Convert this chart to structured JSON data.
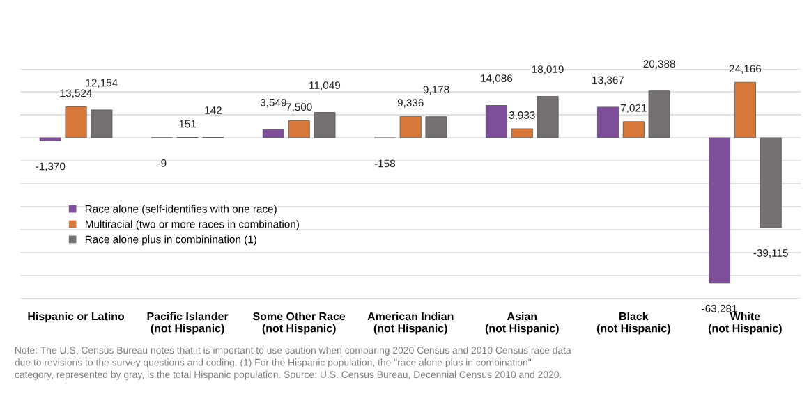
{
  "chart_data": {
    "type": "bar",
    "categories": [
      "Hispanic or Latino",
      "Pacific Islander\n(not Hispanic)",
      "Some Other Race\n(not Hispanic)",
      "American Indian\n(not Hispanic)",
      "Asian\n(not Hispanic)",
      "Black\n(not Hispanic)",
      "White\n(not Hispanic)"
    ],
    "series": [
      {
        "name": "Race alone (self-identifies with one race)",
        "color": "#7f4f9a",
        "values": [
          -1370,
          -9,
          3549,
          -158,
          14086,
          13367,
          -63281
        ],
        "value_labels": [
          "-1,370",
          "-9",
          "3,549",
          "-158",
          "14,086",
          "13,367",
          "-63,281"
        ]
      },
      {
        "name": "Multiracial (two or more races in combination)",
        "color": "#d9783b",
        "values": [
          13524,
          151,
          7500,
          9336,
          3933,
          7021,
          24166
        ],
        "value_labels": [
          "13,524",
          "151",
          "7,500",
          "9,336",
          "3,933",
          "7,021",
          "24,166"
        ]
      },
      {
        "name": "Race alone plus in combinination (1)",
        "color": "#767171",
        "values": [
          12154,
          142,
          11049,
          9178,
          18019,
          20388,
          -39115
        ],
        "value_labels": [
          "12,154",
          "142",
          "11,049",
          "9,178",
          "18,019",
          "20,388",
          "-39,115"
        ]
      }
    ],
    "ylim": [
      -70000,
      30000
    ],
    "yticks": [
      {
        "value": -70000,
        "label": null
      },
      {
        "value": -60000,
        "label": null
      },
      {
        "value": -50000,
        "label": null
      },
      {
        "value": -40000,
        "label": null
      },
      {
        "value": -30000,
        "label": null
      },
      {
        "value": -20000,
        "label": null
      },
      {
        "value": -10000,
        "label": null
      },
      {
        "value": 0,
        "label": null
      },
      {
        "value": 10000,
        "label": null
      },
      {
        "value": 20000,
        "label": null
      },
      {
        "value": 30000,
        "label": null
      }
    ],
    "tick_labels": "x",
    "grid": "y",
    "legend": "center left",
    "annotations": [
      "Note: The U.S. Census Bureau notes that it is important to use caution when comparing 2020 Census and 2010 Census race data\ndue to revisions to the survey questions and coding. (1) For the Hispanic population, the \"race alone plus in combination\"\ncategory, represented by gray, is the total Hispanic population. Source: U.S. Census Bureau, Decennial Census 2010 and 2020."
    ]
  }
}
